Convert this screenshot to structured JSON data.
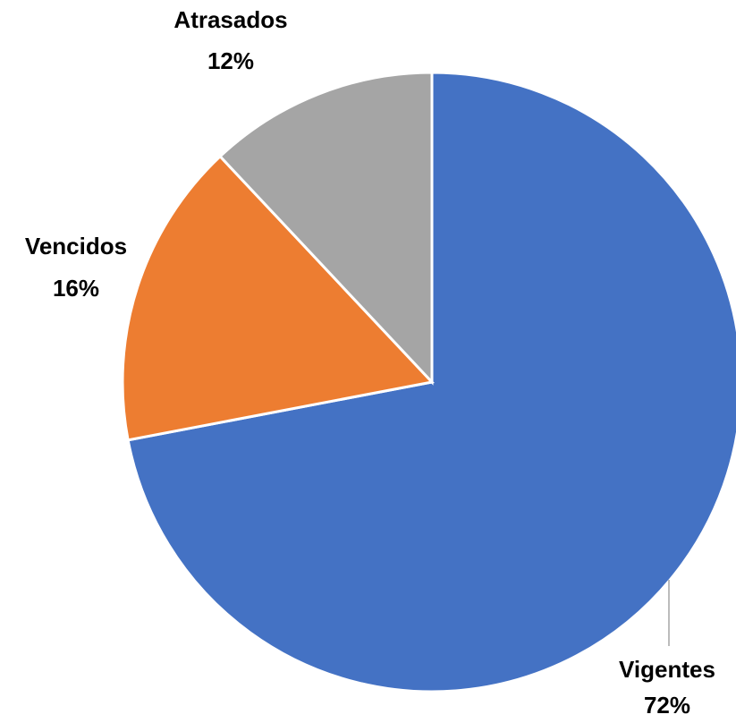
{
  "chart_data": {
    "type": "pie",
    "categories": [
      "Vigentes",
      "Vencidos",
      "Atrasados"
    ],
    "values": [
      72,
      16,
      12
    ],
    "value_labels": [
      "72%",
      "16%",
      "12%"
    ],
    "colors": [
      "#4472c4",
      "#ed7d31",
      "#a5a5a5"
    ]
  }
}
